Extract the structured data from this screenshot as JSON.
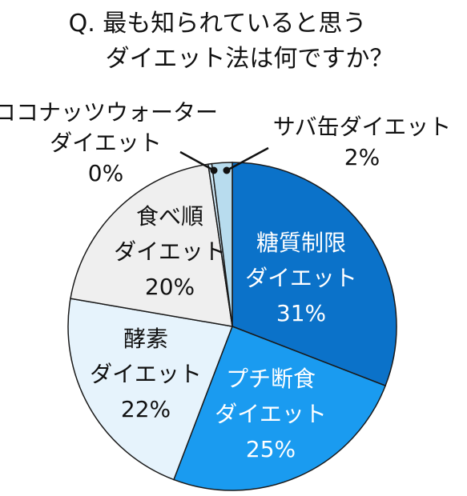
{
  "chart_data": {
    "type": "pie",
    "title_lines": [
      "Q. 最も知られていると思う",
      "ダイエット法は何ですか？"
    ],
    "slices": [
      {
        "label": [
          "糖質制限",
          "ダイエット"
        ],
        "value": 31,
        "value_label": "31%",
        "color": "#0b72c9",
        "text_color": "#ffffff"
      },
      {
        "label": [
          "プチ断食",
          "ダイエット"
        ],
        "value": 25,
        "value_label": "25%",
        "color": "#1a9bf0",
        "text_color": "#ffffff"
      },
      {
        "label": [
          "酵素",
          "ダイエット"
        ],
        "value": 22,
        "value_label": "22%",
        "color": "#e6f3fc",
        "text_color": "#111111"
      },
      {
        "label": [
          "食べ順",
          "ダイエット"
        ],
        "value": 20,
        "value_label": "20%",
        "color": "#efefef",
        "text_color": "#111111"
      },
      {
        "label": [
          "ココナッツウォーター",
          "ダイエット"
        ],
        "value": 0,
        "value_label": "0%",
        "color": "#cfe7f5",
        "text_color": "#111111"
      },
      {
        "label": [
          "サバ缶ダイエット"
        ],
        "value": 2,
        "value_label": "2%",
        "color": "#b8dcee",
        "text_color": "#111111"
      }
    ]
  }
}
